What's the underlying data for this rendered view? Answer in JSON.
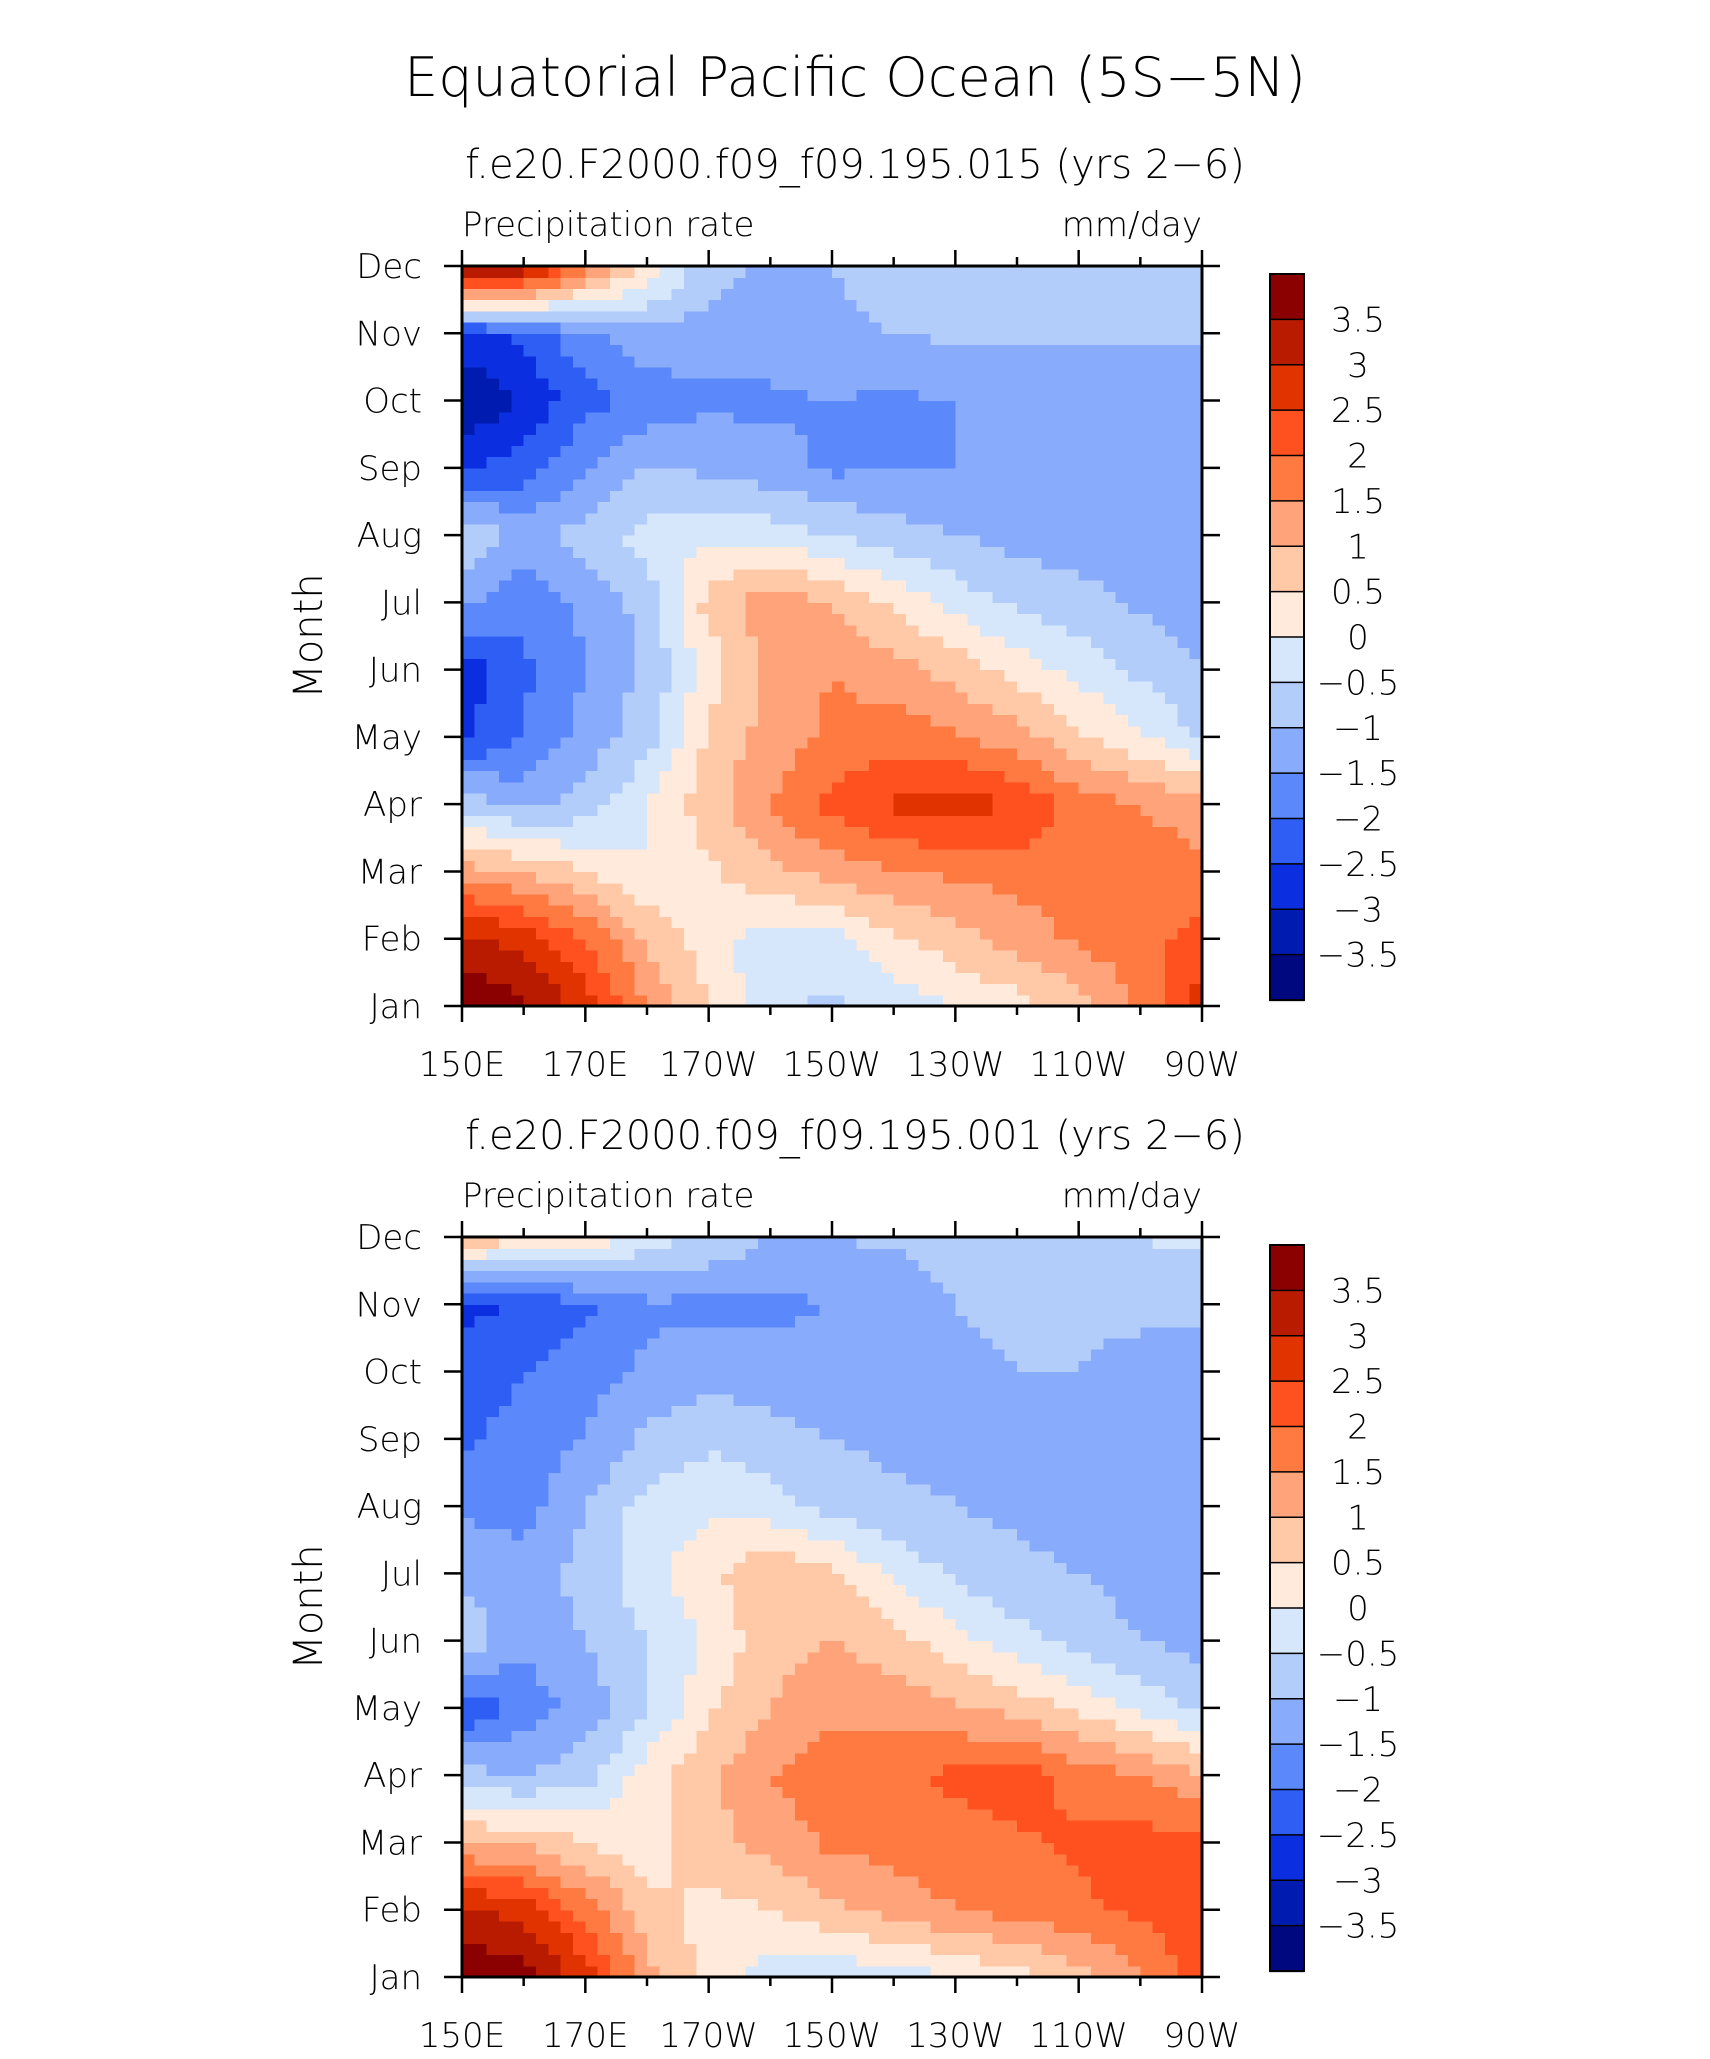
{
  "figure_title": "Equatorial Pacific Ocean (5S−5N)",
  "colorscale": {
    "levels": [
      "3.5",
      "3",
      "2.5",
      "2",
      "1.5",
      "1",
      "0.5",
      "0",
      "−0.5",
      "−1",
      "−1.5",
      "−2",
      "−2.5",
      "−3",
      "−3.5"
    ],
    "colors": [
      "#8b0000",
      "#b81b00",
      "#e03300",
      "#ff5020",
      "#ff7a40",
      "#ffa37a",
      "#ffc9a8",
      "#ffeadb",
      "#d6e6fb",
      "#b3cdfb",
      "#88acfb",
      "#5b89fb",
      "#2f5ef5",
      "#0a2ee0",
      "#001cb0",
      "#000880"
    ]
  },
  "chart_data": [
    {
      "type": "heatmap",
      "title": "f.e20.F2000.f09_f09.195.015 (yrs 2−6)",
      "left_label": "Precipitation rate",
      "right_label": "mm/day",
      "ylabel": "Month",
      "x_tick_labels": [
        "150E",
        "170E",
        "170W",
        "150W",
        "130W",
        "110W",
        "90W"
      ],
      "x_ticks_lon": [
        150,
        170,
        190,
        210,
        230,
        250,
        270
      ],
      "xlim": [
        150,
        270
      ],
      "y_tick_labels": [
        "Jan",
        "Feb",
        "Mar",
        "Apr",
        "May",
        "Jun",
        "Jul",
        "Aug",
        "Sep",
        "Oct",
        "Nov",
        "Dec"
      ],
      "ylim": [
        1,
        12
      ],
      "longitudes": [
        150,
        160,
        170,
        180,
        190,
        200,
        210,
        220,
        230,
        240,
        250,
        260,
        270
      ],
      "months": [
        1,
        2,
        3,
        4,
        5,
        6,
        7,
        8,
        9,
        10,
        11,
        12
      ],
      "values": [
        [
          4.0,
          3.6,
          2.8,
          1.5,
          0.5,
          -0.4,
          -0.6,
          -0.3,
          0.0,
          0.3,
          0.8,
          1.6,
          2.8
        ],
        [
          3.2,
          2.8,
          2.0,
          0.9,
          0.2,
          -0.3,
          -0.2,
          0.4,
          0.8,
          1.2,
          1.6,
          1.8,
          2.2
        ],
        [
          1.2,
          1.0,
          0.5,
          0.0,
          0.4,
          0.9,
          1.2,
          1.5,
          1.6,
          1.7,
          1.8,
          1.7,
          1.6
        ],
        [
          -0.6,
          -1.2,
          -0.8,
          0.0,
          0.8,
          1.5,
          2.2,
          2.6,
          2.7,
          2.5,
          1.8,
          1.5,
          1.3
        ],
        [
          -2.6,
          -2.0,
          -1.3,
          -0.7,
          0.6,
          1.2,
          1.6,
          1.8,
          1.6,
          1.2,
          0.6,
          0.1,
          -0.6
        ],
        [
          -2.8,
          -2.1,
          -1.5,
          -0.9,
          0.2,
          1.2,
          1.5,
          1.2,
          0.8,
          0.3,
          -0.2,
          -0.6,
          -1.0
        ],
        [
          -1.4,
          -1.9,
          -1.4,
          -0.8,
          0.7,
          1.3,
          1.0,
          0.4,
          -0.2,
          -0.6,
          -0.8,
          -1.1,
          -1.2
        ],
        [
          -0.5,
          -1.2,
          -0.8,
          -0.3,
          -0.1,
          -0.2,
          -0.5,
          -0.8,
          -1.0,
          -1.2,
          -1.3,
          -1.4,
          -1.5
        ],
        [
          -2.5,
          -2.3,
          -1.5,
          -1.0,
          -1.1,
          -1.3,
          -1.6,
          -1.5,
          -1.5,
          -1.4,
          -1.4,
          -1.4,
          -1.4
        ],
        [
          -3.6,
          -2.9,
          -2.2,
          -1.8,
          -1.6,
          -1.6,
          -1.5,
          -1.6,
          -1.5,
          -1.5,
          -1.5,
          -1.4,
          -1.4
        ],
        [
          -2.6,
          -2.4,
          -1.6,
          -1.2,
          -1.2,
          -1.2,
          -1.1,
          -1.0,
          -0.9,
          -0.9,
          -0.9,
          -0.9,
          -0.9
        ],
        [
          4.0,
          3.6,
          1.8,
          0.4,
          -0.8,
          -1.1,
          -1.0,
          -0.8,
          -0.8,
          -0.8,
          -0.8,
          -0.7,
          -0.5
        ]
      ]
    },
    {
      "type": "heatmap",
      "title": "f.e20.F2000.f09_f09.195.001 (yrs 2−6)",
      "left_label": "Precipitation rate",
      "right_label": "mm/day",
      "ylabel": "Month",
      "x_tick_labels": [
        "150E",
        "170E",
        "170W",
        "150W",
        "130W",
        "110W",
        "90W"
      ],
      "x_ticks_lon": [
        150,
        170,
        190,
        210,
        230,
        250,
        270
      ],
      "xlim": [
        150,
        270
      ],
      "y_tick_labels": [
        "Jan",
        "Feb",
        "Mar",
        "Apr",
        "May",
        "Jun",
        "Jul",
        "Aug",
        "Sep",
        "Oct",
        "Nov",
        "Dec"
      ],
      "ylim": [
        1,
        12
      ],
      "longitudes": [
        150,
        160,
        170,
        180,
        190,
        200,
        210,
        220,
        230,
        240,
        250,
        260,
        270
      ],
      "months": [
        1,
        2,
        3,
        4,
        5,
        6,
        7,
        8,
        9,
        10,
        11,
        12
      ],
      "values": [
        [
          4.0,
          3.7,
          2.8,
          1.2,
          0.3,
          -0.3,
          -0.4,
          -0.3,
          0.0,
          0.3,
          0.8,
          1.4,
          2.3
        ],
        [
          3.2,
          2.8,
          1.8,
          0.7,
          0.3,
          0.5,
          0.9,
          1.2,
          1.5,
          1.7,
          1.9,
          2.1,
          2.4
        ],
        [
          1.0,
          0.9,
          0.5,
          0.2,
          0.8,
          1.2,
          1.6,
          1.7,
          1.8,
          1.9,
          2.1,
          2.2,
          2.2
        ],
        [
          -0.8,
          -1.0,
          -0.7,
          0.3,
          0.9,
          1.5,
          1.8,
          1.9,
          2.1,
          2.3,
          1.8,
          1.5,
          1.1
        ],
        [
          -2.5,
          -1.8,
          -1.3,
          -0.6,
          0.4,
          1.0,
          1.4,
          1.3,
          1.1,
          0.8,
          0.4,
          -0.1,
          -0.6
        ],
        [
          -0.6,
          -1.4,
          -1.0,
          -0.5,
          0.1,
          0.8,
          1.0,
          0.7,
          0.2,
          -0.3,
          -0.7,
          -1.0,
          -1.2
        ],
        [
          -1.1,
          -1.3,
          -0.8,
          -0.2,
          0.4,
          0.9,
          0.6,
          -0.1,
          -0.6,
          -0.9,
          -1.0,
          -1.2,
          -1.3
        ],
        [
          -1.6,
          -1.7,
          -1.0,
          -0.3,
          -0.1,
          -0.3,
          -0.7,
          -0.9,
          -1.0,
          -1.1,
          -1.2,
          -1.4,
          -1.5
        ],
        [
          -2.1,
          -1.8,
          -1.5,
          -0.9,
          -0.6,
          -0.8,
          -1.0,
          -1.1,
          -1.1,
          -1.1,
          -1.1,
          -1.4,
          -1.5
        ],
        [
          -2.3,
          -2.0,
          -1.7,
          -1.4,
          -1.2,
          -1.3,
          -1.4,
          -1.5,
          -1.1,
          -1.0,
          -1.0,
          -1.3,
          -1.4
        ],
        [
          -2.6,
          -2.5,
          -2.1,
          -1.6,
          -1.6,
          -1.6,
          -1.5,
          -1.4,
          -1.0,
          -0.9,
          -0.8,
          -0.8,
          -0.8
        ],
        [
          1.0,
          0.6,
          0.4,
          -0.2,
          -0.6,
          -1.0,
          -1.0,
          -0.9,
          -0.8,
          -0.7,
          -0.6,
          -0.5,
          -0.4
        ]
      ]
    }
  ]
}
